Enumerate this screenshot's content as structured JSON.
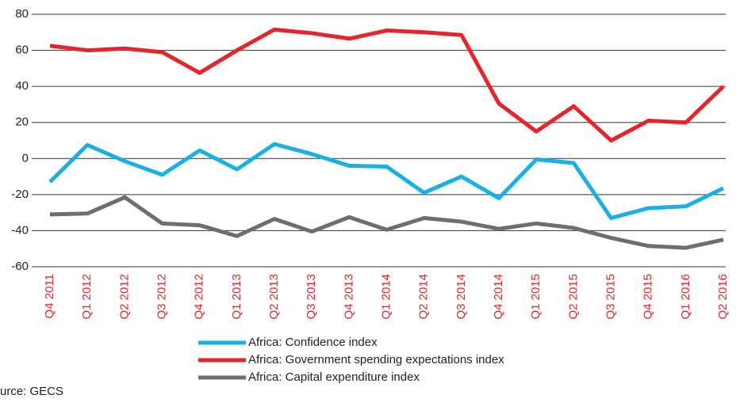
{
  "chart_data": {
    "type": "line",
    "categories": [
      "Q4 2011",
      "Q1 2012",
      "Q2 2012",
      "Q3 2012",
      "Q4 2012",
      "Q1 2013",
      "Q2 2013",
      "Q3 2013",
      "Q4 2013",
      "Q1 2014",
      "Q2 2014",
      "Q3 2014",
      "Q4 2014",
      "Q1 2015",
      "Q2 2015",
      "Q3 2015",
      "Q4 2015",
      "Q1 2016",
      "Q2 2016"
    ],
    "series": [
      {
        "name": "Africa: Confidence index",
        "color": "#1ab0e3",
        "values": [
          -13,
          7.5,
          -1.5,
          -9,
          4.5,
          -6,
          8,
          2.5,
          -4,
          -4.5,
          -19,
          -10,
          -22,
          -0.5,
          -2.5,
          -33,
          -27.5,
          -26.5,
          -16.5
        ]
      },
      {
        "name": "Africa: Government spending expectations index",
        "color": "#e5242c",
        "values": [
          62.5,
          60,
          61,
          59,
          47.5,
          60,
          71.5,
          69.5,
          66.5,
          71,
          70,
          68.5,
          30.5,
          15,
          29,
          10,
          21,
          20,
          40
        ]
      },
      {
        "name": "Africa: Capital expenditure index",
        "color": "#6d6e71",
        "values": [
          -31,
          -30.5,
          -21.5,
          -36,
          -37,
          -43,
          -33.5,
          -40.5,
          -32.5,
          -39.5,
          -33,
          -35,
          -39,
          -36,
          -38.5,
          -44,
          -48.5,
          -49.5,
          -45
        ]
      }
    ],
    "ylim": [
      -60,
      80
    ],
    "yticks": [
      -60,
      -40,
      -20,
      0,
      20,
      40,
      60,
      80
    ],
    "grid": true,
    "legend": "bottom",
    "source": "urce: GECS"
  }
}
